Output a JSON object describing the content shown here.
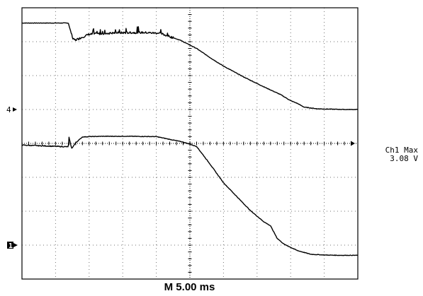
{
  "chart_data": {
    "type": "line",
    "title": "",
    "xlabel": "",
    "ylabel": "",
    "grid": true,
    "divisions": {
      "x": 10,
      "y": 8
    },
    "timebase": "M 5.00 ms",
    "xlim": [
      0,
      50
    ],
    "ylim": [
      -4,
      4
    ],
    "channel_markers": [
      {
        "label": "4",
        "y": 1.0
      },
      {
        "label": "1",
        "y": -3.0
      }
    ],
    "trigger_marker_y": 0.0,
    "measurement": {
      "line1": "Ch1 Max",
      "line2": "3.08 V"
    },
    "series": [
      {
        "label": "4",
        "x": [
          0,
          6.9,
          7.0,
          7.6,
          8.0,
          10.0,
          14.0,
          18.0,
          20.5,
          22.0,
          23.5,
          24.5,
          26.0,
          28.0,
          30.0,
          33.0,
          36.0,
          38.5,
          40.0,
          41.0,
          42.0,
          44.0,
          46.0,
          48.0,
          50.0
        ],
        "y": [
          3.55,
          3.55,
          3.48,
          3.07,
          3.05,
          3.22,
          3.26,
          3.27,
          3.25,
          3.15,
          3.05,
          2.95,
          2.8,
          2.53,
          2.28,
          1.96,
          1.67,
          1.44,
          1.26,
          1.18,
          1.07,
          1.02,
          1.01,
          1.0,
          1.0
        ],
        "noisy_range": [
          7.4,
          22.5
        ]
      },
      {
        "label": "1",
        "x": [
          0,
          6.9,
          7.0,
          7.4,
          8.0,
          9.0,
          10.0,
          12.0,
          16.0,
          20.0,
          22.0,
          24.0,
          26.0,
          28.0,
          30.0,
          32.0,
          34.0,
          36.0,
          37.0,
          38.0,
          39.0,
          41.0,
          43.0,
          45.0,
          47.0,
          50.0
        ],
        "y": [
          -0.05,
          -0.1,
          0.18,
          -0.15,
          0.02,
          0.19,
          0.2,
          0.21,
          0.21,
          0.2,
          0.12,
          0.04,
          -0.09,
          -0.61,
          -1.16,
          -1.57,
          -1.98,
          -2.31,
          -2.43,
          -2.8,
          -2.97,
          -3.16,
          -3.27,
          -3.29,
          -3.3,
          -3.3
        ],
        "noisy_range": [
          0,
          6.8
        ]
      }
    ]
  }
}
